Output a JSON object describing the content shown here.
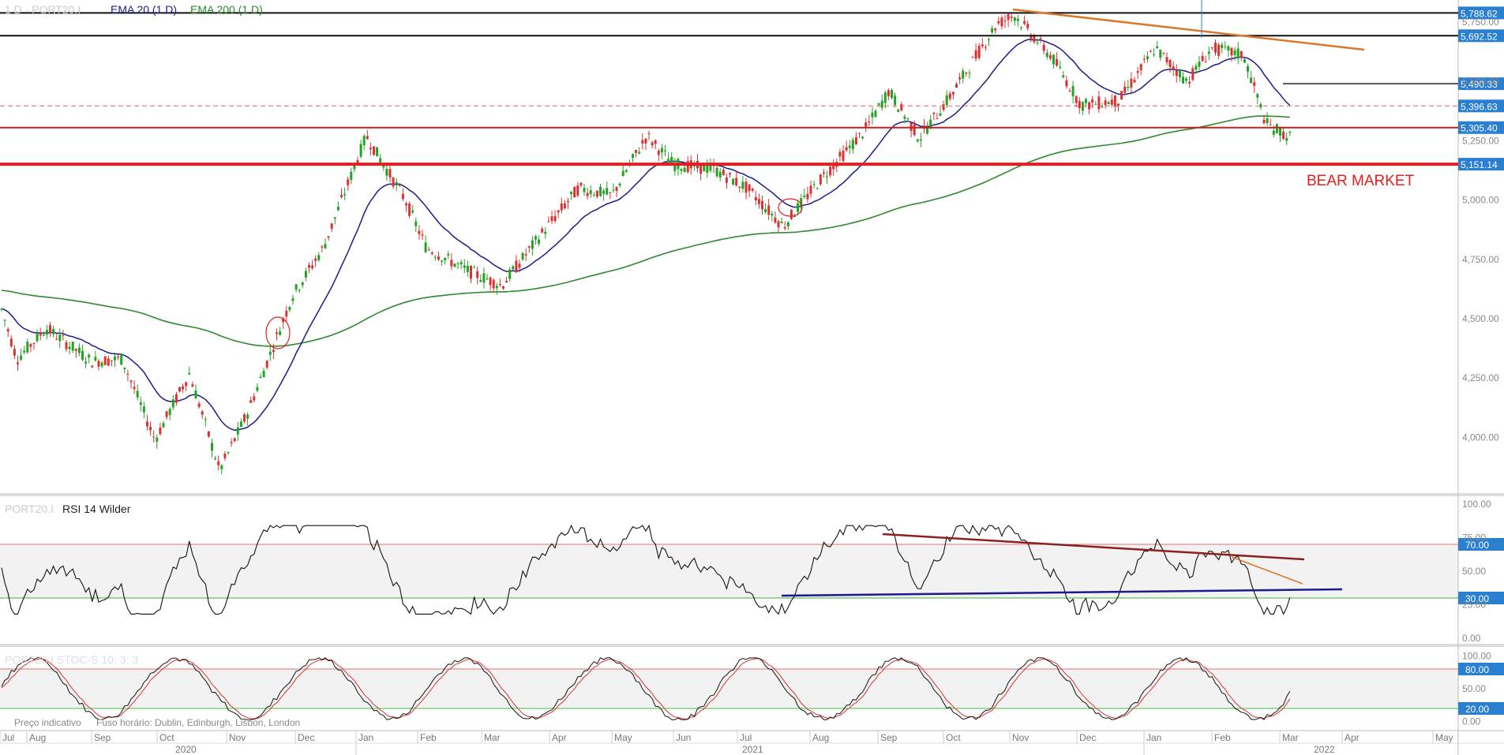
{
  "header": {
    "main_prefix": "1 D · PORT20.I",
    "ema20_label": "EMA 20  (1 D)",
    "ema200_label": "EMA 200  (1 D)",
    "rsi_prefix": "PORT20.I",
    "rsi_label": "RSI 14 Wilder",
    "stoch_label": "PORT20.I  STOC-S 10; 3; 3",
    "footer_left": "Preço indicativo",
    "footer_tz": "Fuso horário: Dublin, Edinburgh, Lisbon, London"
  },
  "annotations": {
    "bear_market": "BEAR MARKET"
  },
  "colors": {
    "up": "#23a323",
    "down": "#d83232",
    "ema20": "#1b1b8c",
    "ema200": "#2c8a2c",
    "price_tag": "#2a7fd0",
    "resistance": "#111111",
    "support": "#e02020",
    "trendline": "#d9772a",
    "rsi_trend_top": "#8b2020",
    "rsi_trend_bottom": "#1b1b8c"
  },
  "price_axis": {
    "ticks": [
      "5,750.00",
      "5,500.00",
      "5,250.00",
      "5,000.00",
      "4,750.00",
      "4,500.00",
      "4,250.00",
      "4,000.00"
    ],
    "tick_values": [
      5750,
      5500,
      5250,
      5000,
      4750,
      4500,
      4250,
      4000
    ],
    "range": [
      3780,
      5840
    ]
  },
  "price_levels": [
    {
      "label": "5,788.62",
      "value": 5788.62,
      "color": "#111111",
      "style": "solid"
    },
    {
      "label": "5,692.52",
      "value": 5692.52,
      "color": "#111111",
      "style": "solid"
    },
    {
      "label": "5,490.33",
      "value": 5490.33,
      "color": "#111111",
      "style": "thin"
    },
    {
      "label": "5,396.63",
      "value": 5396.63,
      "color": "#e06060",
      "style": "dashed"
    },
    {
      "label": "5,305.40",
      "value": 5305.4,
      "color": "#c02020",
      "style": "solid"
    },
    {
      "label": "5,151.14",
      "value": 5151.14,
      "color": "#e02020",
      "style": "thick"
    }
  ],
  "rsi_axis": {
    "ticks": [
      "100.00",
      "75.00",
      "50.00",
      "25.00",
      "0.00"
    ],
    "tick_values": [
      100,
      75,
      50,
      25,
      0
    ],
    "levels": [
      {
        "label": "70.00",
        "value": 70
      },
      {
        "label": "30.00",
        "value": 30
      }
    ]
  },
  "stoch_axis": {
    "ticks": [
      "100.00",
      "50.00",
      "0.00"
    ],
    "tick_values": [
      100,
      50,
      0
    ],
    "levels": [
      {
        "label": "80.00",
        "value": 80
      },
      {
        "label": "20.00",
        "value": 20
      }
    ]
  },
  "time_axis": {
    "months": [
      "Jul",
      "Aug",
      "Sep",
      "Oct",
      "Nov",
      "Dec",
      "Jan",
      "Feb",
      "Mar",
      "Apr",
      "May",
      "Jun",
      "Jul",
      "Aug",
      "Sep",
      "Oct",
      "Nov",
      "Dec",
      "Jan",
      "Feb",
      "Mar",
      "Apr",
      "May"
    ],
    "years": [
      "2020",
      "2021",
      "2022"
    ]
  },
  "chart_data": {
    "type": "candlestick",
    "title": "",
    "x_range": [
      "2020-07",
      "2022-05"
    ],
    "ylim": [
      3780,
      5840
    ],
    "close_path": [
      [
        "2020-07-01",
        4560
      ],
      [
        "2020-07-20",
        4330
      ],
      [
        "2020-08-10",
        4460
      ],
      [
        "2020-08-31",
        4320
      ],
      [
        "2020-09-15",
        4330
      ],
      [
        "2020-09-30",
        3990
      ],
      [
        "2020-10-15",
        4270
      ],
      [
        "2020-10-28",
        3860
      ],
      [
        "2020-11-10",
        4100
      ],
      [
        "2020-11-30",
        4600
      ],
      [
        "2020-12-15",
        4800
      ],
      [
        "2021-01-06",
        5270
      ],
      [
        "2021-01-25",
        5000
      ],
      [
        "2021-02-05",
        4800
      ],
      [
        "2021-02-25",
        4700
      ],
      [
        "2021-03-10",
        4640
      ],
      [
        "2021-03-31",
        4900
      ],
      [
        "2021-04-15",
        5050
      ],
      [
        "2021-05-01",
        5020
      ],
      [
        "2021-05-18",
        5270
      ],
      [
        "2021-06-01",
        5150
      ],
      [
        "2021-06-20",
        5130
      ],
      [
        "2021-07-05",
        5050
      ],
      [
        "2021-07-20",
        4890
      ],
      [
        "2021-08-05",
        5080
      ],
      [
        "2021-08-25",
        5290
      ],
      [
        "2021-09-06",
        5460
      ],
      [
        "2021-09-20",
        5260
      ],
      [
        "2021-10-05",
        5450
      ],
      [
        "2021-10-25",
        5740
      ],
      [
        "2021-11-03",
        5780
      ],
      [
        "2021-11-20",
        5600
      ],
      [
        "2021-12-03",
        5400
      ],
      [
        "2021-12-20",
        5420
      ],
      [
        "2022-01-06",
        5640
      ],
      [
        "2022-01-20",
        5500
      ],
      [
        "2022-02-01",
        5640
      ],
      [
        "2022-02-15",
        5610
      ],
      [
        "2022-02-25",
        5320
      ],
      [
        "2022-03-07",
        5260
      ]
    ],
    "ema20_visible": true,
    "ema200_visible": true,
    "trendline_annotations": [
      "resistance from Nov-2021 high",
      "support 5,151.14"
    ]
  }
}
